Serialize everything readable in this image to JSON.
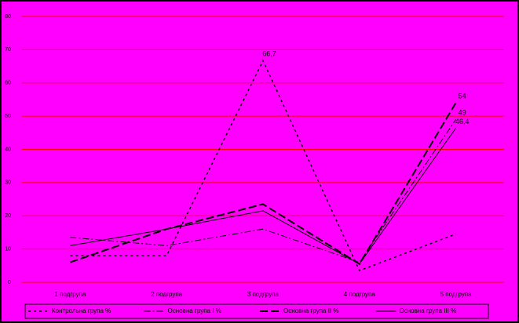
{
  "chart_data": {
    "type": "line",
    "categories": [
      "1 подгрупа",
      "2 подгрупа",
      "3 подгрупа",
      "4 подгрупа",
      "5 подгрупа"
    ],
    "series": [
      {
        "name": "Контрольна група %",
        "color": "#000000",
        "style": "dotted",
        "values": [
          8,
          8,
          66.7,
          3.5,
          14.5
        ],
        "value_labels": [
          null,
          null,
          "66,7",
          null,
          null
        ]
      },
      {
        "name": "Основна група І %",
        "color": "#000000",
        "style": "dashdot",
        "values": [
          13.5,
          11,
          16,
          6,
          49
        ],
        "value_labels": [
          null,
          null,
          null,
          null,
          "49"
        ]
      },
      {
        "name": "Основна група ІІ %",
        "color": "#000000",
        "style": "dashed",
        "values": [
          6,
          16,
          23.5,
          5.5,
          54
        ],
        "value_labels": [
          null,
          null,
          null,
          null,
          "54"
        ]
      },
      {
        "name": "Основна група ІІІ %",
        "color": "#000000",
        "style": "solid",
        "values": [
          11,
          16,
          21.5,
          5.5,
          46.4
        ],
        "value_labels": [
          null,
          null,
          null,
          null,
          "46,4"
        ]
      }
    ],
    "ylim": [
      0,
      80
    ],
    "yticks": [
      0,
      10,
      20,
      30,
      40,
      50,
      60,
      70,
      80
    ],
    "grid": true,
    "grid_color": "#ff0000",
    "background": "#ff00ff",
    "legend": "bottom"
  }
}
